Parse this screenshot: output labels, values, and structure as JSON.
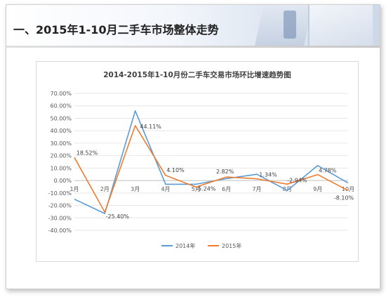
{
  "header": {
    "title": "一、2015年1-10月二手车市场整体走势"
  },
  "chart_data": {
    "type": "line",
    "title": "2014-2015年1-10月份二手车交易市场环比增速趋势图",
    "categories": [
      "1月",
      "2月",
      "3月",
      "4月",
      "5月",
      "6月",
      "7月",
      "8月",
      "9月",
      "10月"
    ],
    "ylim": [
      -40,
      70
    ],
    "yticks": [
      -40,
      -30,
      -20,
      -10,
      0,
      10,
      20,
      30,
      40,
      50,
      60,
      70
    ],
    "ytick_labels": [
      "-40.00%",
      "-30.00%",
      "-20.00%",
      "-10.00%",
      "0.00%",
      "10.00%",
      "20.00%",
      "30.00%",
      "40.00%",
      "50.00%",
      "60.00%",
      "70.00%"
    ],
    "legend_position": "bottom",
    "series": [
      {
        "name": "2014年",
        "color": "#5b9bd5",
        "values": [
          -15.0,
          -26.5,
          56.0,
          -3.0,
          -3.0,
          1.5,
          5.0,
          -8.0,
          12.0,
          -2.0
        ],
        "data_labels": [
          "",
          "",
          "",
          "",
          "",
          "",
          "",
          "",
          "",
          ""
        ]
      },
      {
        "name": "2015年",
        "color": "#ed7d31",
        "values": [
          18.52,
          -25.4,
          44.11,
          4.1,
          -5.24,
          2.82,
          1.34,
          -2.94,
          4.78,
          -8.1
        ],
        "data_labels": [
          "18.52%",
          "-25.40%",
          "44.11%",
          "4.10%",
          "-5.24%",
          "2.82%",
          "1.34%",
          "-2.94%",
          "4.78%",
          "-8.10%"
        ]
      }
    ]
  }
}
